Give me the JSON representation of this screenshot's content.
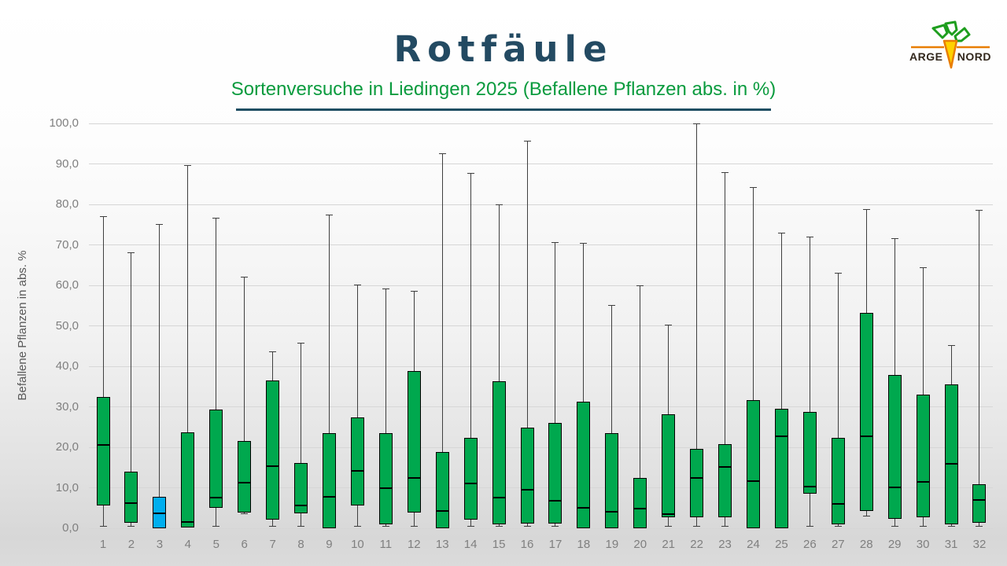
{
  "slide": {
    "title": "Rotfäule",
    "subtitle": "Sortenversuche in Liedingen 2025 (Befallene Pflanzen abs. in %)",
    "logo": {
      "line1": "ARGE",
      "line2": "NORD"
    }
  },
  "chart_data": {
    "type": "boxplot",
    "title": "Rotfäule",
    "subtitle": "Sortenversuche in Liedingen 2025 (Befallene Pflanzen abs. in %)",
    "ylabel": "Befallene Pflanzen in abs. %",
    "ylim": [
      0,
      100
    ],
    "ytick_step": 10,
    "ytick_labels": [
      "0,0",
      "10,0",
      "20,0",
      "30,0",
      "40,0",
      "50,0",
      "60,0",
      "70,0",
      "80,0",
      "90,0",
      "100,0"
    ],
    "grid": true,
    "legend": false,
    "categories": [
      "1",
      "2",
      "3",
      "4",
      "5",
      "6",
      "7",
      "8",
      "9",
      "10",
      "11",
      "12",
      "13",
      "14",
      "15",
      "16",
      "17",
      "18",
      "19",
      "20",
      "21",
      "22",
      "23",
      "24",
      "25",
      "26",
      "27",
      "28",
      "29",
      "30",
      "31",
      "32"
    ],
    "series": [
      {
        "category": "1",
        "whisker_low": 0.4,
        "q1": 5.7,
        "median": 20.5,
        "q3": 32.5,
        "whisker_high": 77.0
      },
      {
        "category": "2",
        "whisker_low": 0.4,
        "q1": 1.3,
        "median": 6.2,
        "q3": 14.0,
        "whisker_high": 68.0
      },
      {
        "category": "3",
        "whisker_low": 0.0,
        "q1": 0.0,
        "median": 3.6,
        "q3": 7.7,
        "whisker_high": 75.0,
        "highlight": true
      },
      {
        "category": "4",
        "whisker_low": 0.2,
        "q1": 0.2,
        "median": 1.5,
        "q3": 23.6,
        "whisker_high": 89.7
      },
      {
        "category": "5",
        "whisker_low": 0.4,
        "q1": 5.1,
        "median": 7.6,
        "q3": 29.3,
        "whisker_high": 76.6
      },
      {
        "category": "6",
        "whisker_low": 3.6,
        "q1": 3.8,
        "median": 11.3,
        "q3": 21.6,
        "whisker_high": 62.0
      },
      {
        "category": "7",
        "whisker_low": 0.4,
        "q1": 2.2,
        "median": 15.3,
        "q3": 36.6,
        "whisker_high": 43.6
      },
      {
        "category": "8",
        "whisker_low": 0.4,
        "q1": 3.6,
        "median": 5.6,
        "q3": 16.1,
        "whisker_high": 45.8
      },
      {
        "category": "9",
        "whisker_low": 0.0,
        "q1": 0.0,
        "median": 7.7,
        "q3": 23.5,
        "whisker_high": 77.4
      },
      {
        "category": "10",
        "whisker_low": 0.4,
        "q1": 5.7,
        "median": 14.2,
        "q3": 27.3,
        "whisker_high": 60.1
      },
      {
        "category": "11",
        "whisker_low": 0.4,
        "q1": 1.0,
        "median": 9.9,
        "q3": 23.4,
        "whisker_high": 59.2
      },
      {
        "category": "12",
        "whisker_low": 0.4,
        "q1": 3.8,
        "median": 12.5,
        "q3": 38.9,
        "whisker_high": 58.6
      },
      {
        "category": "13",
        "whisker_low": 0.0,
        "q1": 0.0,
        "median": 4.3,
        "q3": 18.8,
        "whisker_high": 92.5
      },
      {
        "category": "14",
        "whisker_low": 0.4,
        "q1": 2.1,
        "median": 11.1,
        "q3": 22.4,
        "whisker_high": 87.6
      },
      {
        "category": "15",
        "whisker_low": 0.4,
        "q1": 1.0,
        "median": 7.6,
        "q3": 36.3,
        "whisker_high": 80.0
      },
      {
        "category": "16",
        "whisker_low": 0.4,
        "q1": 1.2,
        "median": 9.6,
        "q3": 24.8,
        "whisker_high": 95.7
      },
      {
        "category": "17",
        "whisker_low": 0.4,
        "q1": 1.2,
        "median": 6.7,
        "q3": 26.0,
        "whisker_high": 70.6
      },
      {
        "category": "18",
        "whisker_low": 0.0,
        "q1": 0.0,
        "median": 5.1,
        "q3": 31.3,
        "whisker_high": 70.4
      },
      {
        "category": "19",
        "whisker_low": 0.0,
        "q1": 0.0,
        "median": 4.1,
        "q3": 23.5,
        "whisker_high": 55.1
      },
      {
        "category": "20",
        "whisker_low": 0.0,
        "q1": 0.0,
        "median": 4.9,
        "q3": 12.5,
        "whisker_high": 60.0
      },
      {
        "category": "21",
        "whisker_low": 0.4,
        "q1": 2.8,
        "median": 3.5,
        "q3": 28.2,
        "whisker_high": 50.2
      },
      {
        "category": "22",
        "whisker_low": 0.4,
        "q1": 2.7,
        "median": 12.5,
        "q3": 19.6,
        "whisker_high": 99.9
      },
      {
        "category": "23",
        "whisker_low": 0.4,
        "q1": 2.7,
        "median": 15.1,
        "q3": 20.8,
        "whisker_high": 87.9
      },
      {
        "category": "24",
        "whisker_low": 0.0,
        "q1": 0.0,
        "median": 11.6,
        "q3": 31.7,
        "whisker_high": 84.1
      },
      {
        "category": "25",
        "whisker_low": 0.0,
        "q1": 0.0,
        "median": 22.8,
        "q3": 29.6,
        "whisker_high": 72.9
      },
      {
        "category": "26",
        "whisker_low": 0.4,
        "q1": 8.6,
        "median": 10.2,
        "q3": 28.7,
        "whisker_high": 71.9
      },
      {
        "category": "27",
        "whisker_low": 0.4,
        "q1": 0.9,
        "median": 6.0,
        "q3": 22.3,
        "whisker_high": 63.0
      },
      {
        "category": "28",
        "whisker_low": 3.0,
        "q1": 4.3,
        "median": 22.7,
        "q3": 53.2,
        "whisker_high": 78.7
      },
      {
        "category": "29",
        "whisker_low": 0.4,
        "q1": 2.3,
        "median": 10.1,
        "q3": 37.8,
        "whisker_high": 71.5
      },
      {
        "category": "30",
        "whisker_low": 0.4,
        "q1": 2.8,
        "median": 11.5,
        "q3": 33.1,
        "whisker_high": 64.3
      },
      {
        "category": "31",
        "whisker_low": 0.4,
        "q1": 0.9,
        "median": 15.9,
        "q3": 35.5,
        "whisker_high": 45.2
      },
      {
        "category": "32",
        "whisker_low": 0.4,
        "q1": 1.3,
        "median": 7.0,
        "q3": 10.9,
        "whisker_high": 78.6
      }
    ],
    "colors": {
      "box_fill": "#00A84E",
      "highlight_fill": "#00AEEF",
      "border": "#000000",
      "median": "#000000",
      "whisker": "#3F3F3F",
      "grid": "#D6D6D6",
      "axis_text": "#7F7F7F",
      "title": "#234A62",
      "subtitle": "#0A9B3E"
    }
  }
}
